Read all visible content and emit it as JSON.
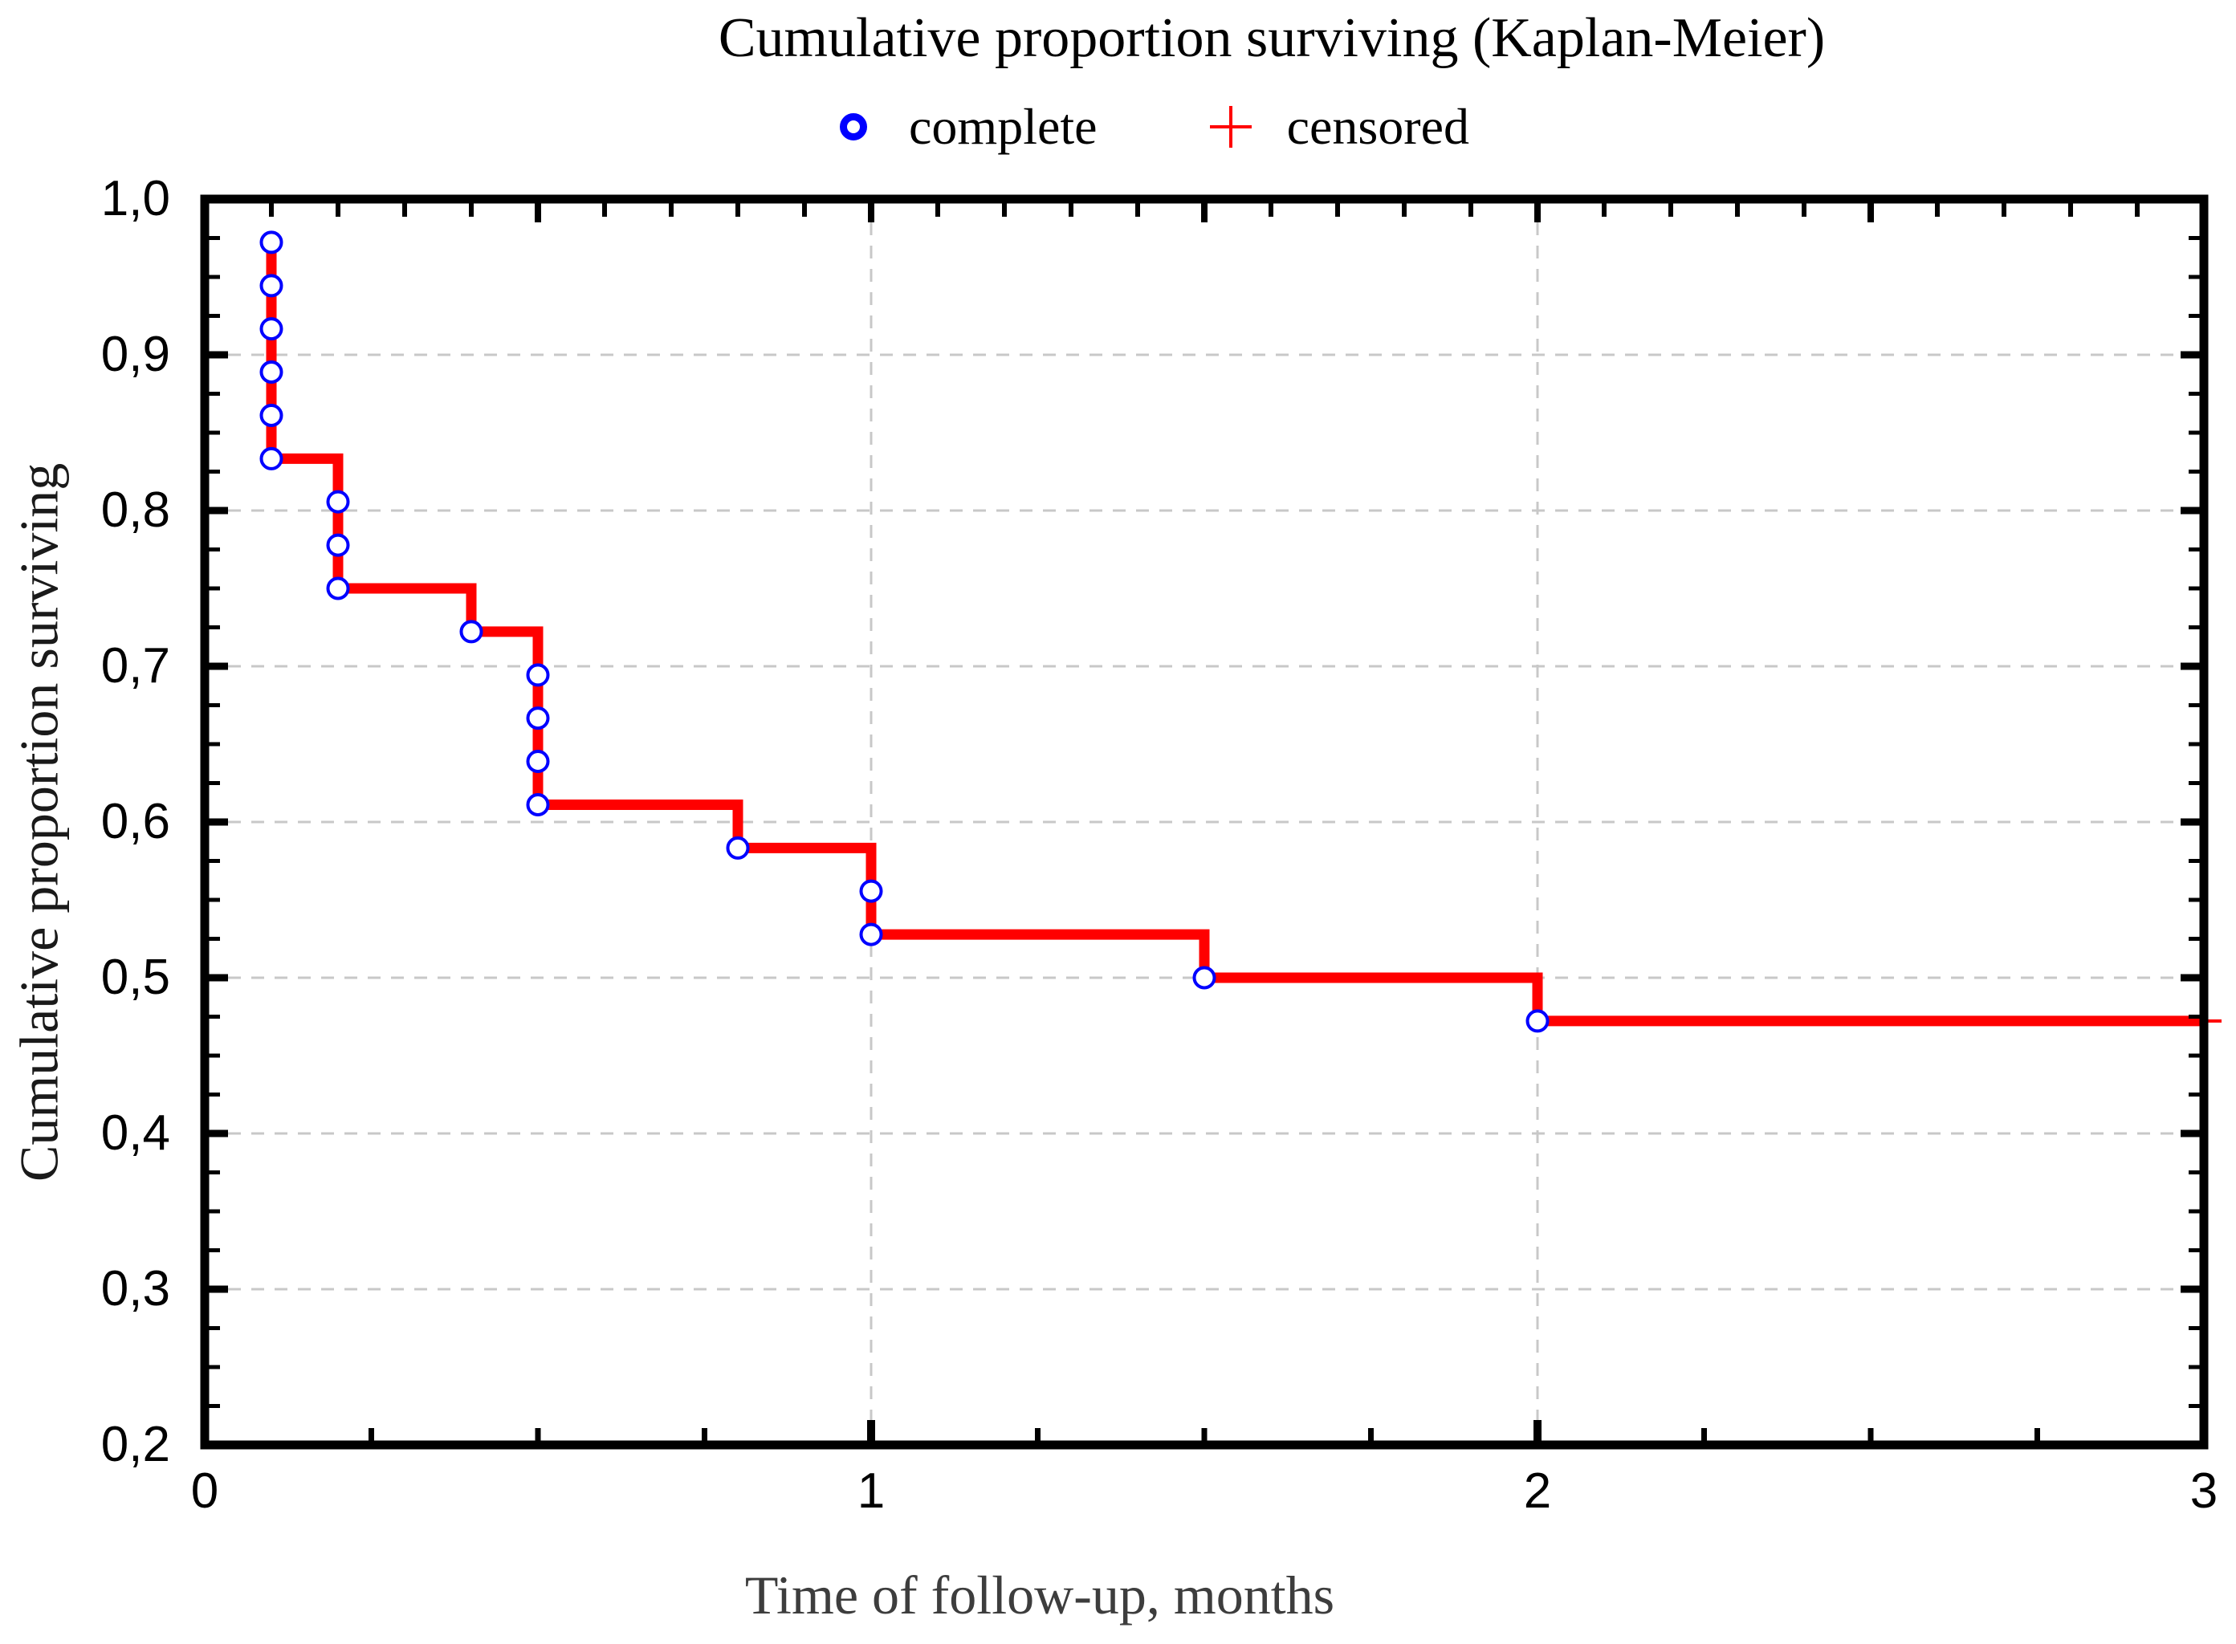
{
  "chart_data": {
    "type": "line",
    "subtype": "kaplan-meier-step-function",
    "title": "Cumulative proportion surviving (Kaplan-Meier)",
    "legend": {
      "position": "top",
      "items": [
        {
          "label": "complete",
          "marker": "circle",
          "color": "#0000ff"
        },
        {
          "label": "censored",
          "marker": "plus",
          "color": "#ff0000"
        }
      ]
    },
    "x_axis": {
      "label": "Time of follow-up, months",
      "range": [
        0,
        3
      ],
      "ticks": [
        {
          "value": 0,
          "label": "0"
        },
        {
          "value": 1,
          "label": "1"
        },
        {
          "value": 2,
          "label": "2"
        },
        {
          "value": 3,
          "label": "3"
        }
      ],
      "minor_tick_step_bottom": 0.25,
      "minor_tick_step_top": 0.1
    },
    "y_axis": {
      "label": "Cumulative proportion surviving",
      "range": [
        0.2,
        1.0
      ],
      "decimal_separator": ",",
      "ticks": [
        {
          "value": 1.0,
          "label": "1,0"
        },
        {
          "value": 0.9,
          "label": "0,9"
        },
        {
          "value": 0.8,
          "label": "0,8"
        },
        {
          "value": 0.7,
          "label": "0,7"
        },
        {
          "value": 0.6,
          "label": "0,6"
        },
        {
          "value": 0.5,
          "label": "0,5"
        },
        {
          "value": 0.4,
          "label": "0,4"
        },
        {
          "value": 0.3,
          "label": "0,3"
        },
        {
          "value": 0.2,
          "label": "0,2"
        }
      ],
      "minor_tick_step": 0.025
    },
    "grid": {
      "style": "dashed",
      "x_values": [
        1,
        2
      ],
      "y_values": [
        0.9,
        0.8,
        0.7,
        0.6,
        0.5,
        0.4,
        0.3
      ]
    },
    "series": [
      {
        "name": "complete",
        "marker": "circle",
        "points": [
          {
            "t": 0.1,
            "s": 0.9722
          },
          {
            "t": 0.1,
            "s": 0.9444
          },
          {
            "t": 0.1,
            "s": 0.9167
          },
          {
            "t": 0.1,
            "s": 0.8889
          },
          {
            "t": 0.1,
            "s": 0.8611
          },
          {
            "t": 0.1,
            "s": 0.8333
          },
          {
            "t": 0.2,
            "s": 0.8056
          },
          {
            "t": 0.2,
            "s": 0.7778
          },
          {
            "t": 0.2,
            "s": 0.75
          },
          {
            "t": 0.4,
            "s": 0.7222
          },
          {
            "t": 0.5,
            "s": 0.6944
          },
          {
            "t": 0.5,
            "s": 0.6667
          },
          {
            "t": 0.5,
            "s": 0.6389
          },
          {
            "t": 0.5,
            "s": 0.6111
          },
          {
            "t": 0.8,
            "s": 0.5833
          },
          {
            "t": 1.0,
            "s": 0.5556
          },
          {
            "t": 1.0,
            "s": 0.5278
          },
          {
            "t": 1.5,
            "s": 0.5
          },
          {
            "t": 2.0,
            "s": 0.4722
          }
        ]
      },
      {
        "name": "censored",
        "marker": "plus",
        "points": [
          {
            "t": 3.0,
            "s": 0.4722
          }
        ]
      }
    ],
    "colors": {
      "curve": "#ff0000",
      "complete": "#0000ff",
      "censored": "#ff0000",
      "grid": "#c8c8c8",
      "axis": "#000000",
      "title": "#000000",
      "x_title": "#3d3d3d",
      "y_title": "#1a1a1a",
      "tick_label": "#000000"
    }
  }
}
